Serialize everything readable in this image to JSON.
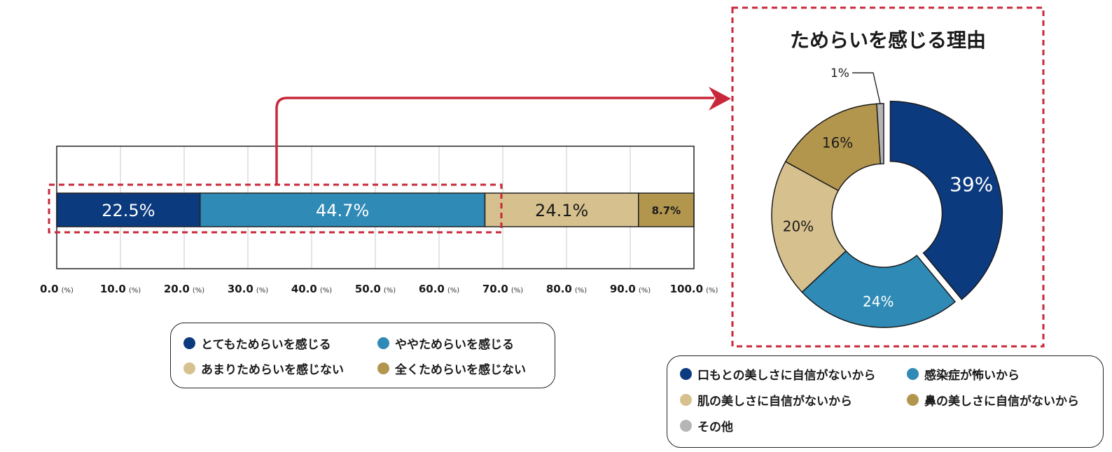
{
  "bar_chart": {
    "ticks": [
      "0.0",
      "10.0",
      "20.0",
      "30.0",
      "40.0",
      "50.0",
      "60.0",
      "70.0",
      "80.0",
      "90.0",
      "100.0"
    ],
    "tick_unit": "(%)",
    "legend": [
      "とてもためらいを感じる",
      "ややためらいを感じる",
      "あまりためらいを感じない",
      "全くためらいを感じない"
    ]
  },
  "donut_chart": {
    "title": "ためらいを感じる理由",
    "legend": [
      "口もとの美しさに自信がないから",
      "感染症が怖いから",
      "肌の美しさに自信がないから",
      "鼻の美しさに自信がないから",
      "その他"
    ]
  },
  "colors": {
    "navy": "#0b3a7e",
    "blue": "#2f8ab5",
    "beige": "#d6c08e",
    "gold": "#b3964e",
    "gray": "#b5b5b5",
    "accent_red": "#c8283a"
  },
  "chart_data": [
    {
      "type": "bar",
      "orientation": "horizontal-stacked",
      "categories": [
        ""
      ],
      "series": [
        {
          "name": "とてもためらいを感じる",
          "values": [
            22.5
          ],
          "label": "22.5%"
        },
        {
          "name": "ややためらいを感じる",
          "values": [
            44.7
          ],
          "label": "44.7%"
        },
        {
          "name": "あまりためらいを感じない",
          "values": [
            24.1
          ],
          "label": "24.1%"
        },
        {
          "name": "全くためらいを感じない",
          "values": [
            8.7
          ],
          "label": "8.7%"
        }
      ],
      "xlim": [
        0,
        100
      ],
      "x_ticks": [
        0,
        10,
        20,
        30,
        40,
        50,
        60,
        70,
        80,
        90,
        100
      ],
      "grid": true,
      "legend_position": "bottom"
    },
    {
      "type": "pie",
      "variant": "donut",
      "title": "ためらいを感じる理由",
      "slices": [
        {
          "name": "口もとの美しさに自信がないから",
          "value": 39,
          "label": "39%"
        },
        {
          "name": "感染症が怖いから",
          "value": 24,
          "label": "24%"
        },
        {
          "name": "肌の美しさに自信がないから",
          "value": 20,
          "label": "20%"
        },
        {
          "name": "鼻の美しさに自信がないから",
          "value": 16,
          "label": "16%"
        },
        {
          "name": "その他",
          "value": 1,
          "label": "1%"
        }
      ],
      "exploded": "口もとの美しさに自信がないから",
      "legend_position": "bottom"
    }
  ]
}
